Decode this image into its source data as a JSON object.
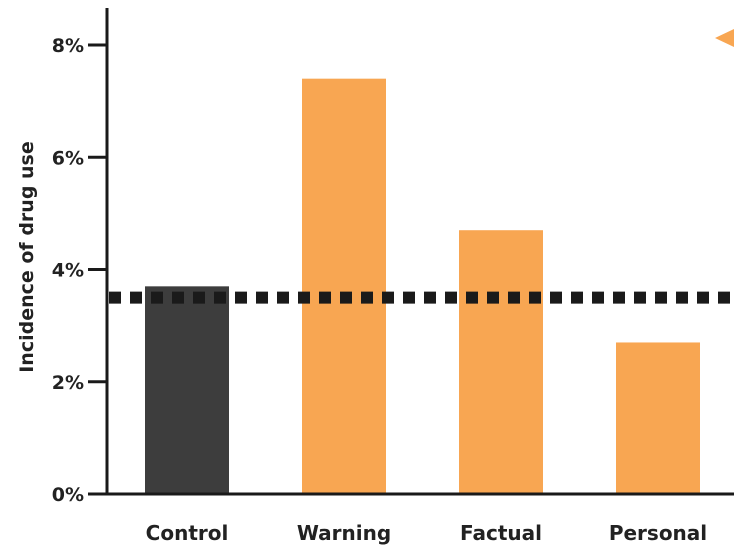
{
  "chart_data": {
    "type": "bar",
    "categories": [
      "Control",
      "Warning",
      "Factual",
      "Personal"
    ],
    "values": [
      3.7,
      7.4,
      4.7,
      2.7
    ],
    "bar_colors": [
      "#3d3d3d",
      "#f8a652",
      "#f8a652",
      "#f8a652"
    ],
    "ylabel": "Incidence of drug use",
    "ylim": [
      0,
      8
    ],
    "yticks": [
      0,
      2,
      4,
      6,
      8
    ],
    "ytick_labels": [
      "0%",
      "2%",
      "4%",
      "6%",
      "8%"
    ],
    "reference_line": {
      "value": 3.5,
      "style": "dotted",
      "color": "#1a1a1a"
    },
    "marker": {
      "shape": "triangle-left",
      "color": "#f8a652"
    },
    "grid": false
  }
}
